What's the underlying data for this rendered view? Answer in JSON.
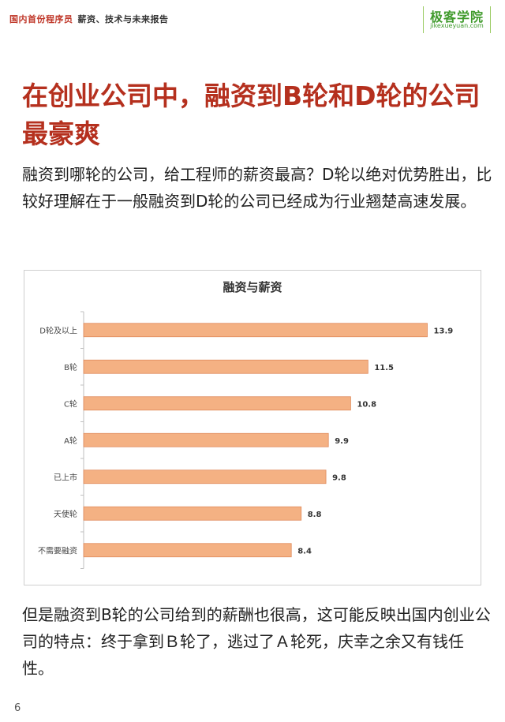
{
  "header": {
    "brand": "国内首份程序员",
    "subtitle": "薪资、技术与未来报告",
    "logo_text": "极客学院",
    "logo_url": "jikexueyuan.com",
    "brand_color": "#c0392b",
    "logo_color": "#3f9a2b"
  },
  "title": "在创业公司中，融资到B轮和D轮的公司最豪爽",
  "intro": "融资到哪轮的公司，给工程师的薪资最高？D轮以绝对优势胜出，比较好理解在于一般融资到D轮的公司已经成为行业翘楚高速发展。",
  "chart_data": {
    "type": "bar",
    "orientation": "horizontal",
    "title": "融资与薪资",
    "categories": [
      "D轮及以上",
      "B轮",
      "C轮",
      "A轮",
      "已上市",
      "天使轮",
      "不需要融资"
    ],
    "values": [
      13.9,
      11.5,
      10.8,
      9.9,
      9.8,
      8.8,
      8.4
    ],
    "xlim": [
      0,
      15
    ],
    "grid": false,
    "bar_color": "#f4b183",
    "bar_border_color": "#e08a5c"
  },
  "conclusion": "但是融资到B轮的公司给到的薪酬也很高，这可能反映出国内创业公司的特点：终于拿到Ｂ轮了，逃过了Ａ轮死，庆幸之余又有钱任性。",
  "page_number": "6"
}
